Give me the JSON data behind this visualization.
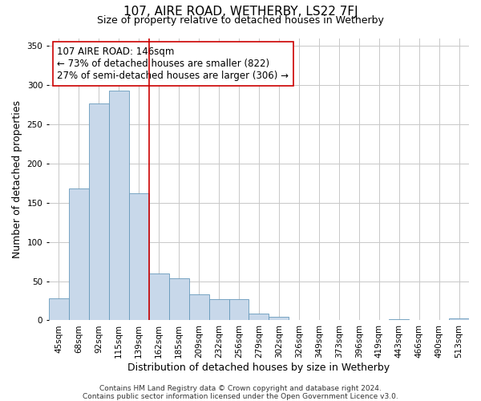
{
  "title": "107, AIRE ROAD, WETHERBY, LS22 7FJ",
  "subtitle": "Size of property relative to detached houses in Wetherby",
  "xlabel": "Distribution of detached houses by size in Wetherby",
  "ylabel": "Number of detached properties",
  "footer_line1": "Contains HM Land Registry data © Crown copyright and database right 2024.",
  "footer_line2": "Contains public sector information licensed under the Open Government Licence v3.0.",
  "bar_labels": [
    "45sqm",
    "68sqm",
    "92sqm",
    "115sqm",
    "139sqm",
    "162sqm",
    "185sqm",
    "209sqm",
    "232sqm",
    "256sqm",
    "279sqm",
    "302sqm",
    "326sqm",
    "349sqm",
    "373sqm",
    "396sqm",
    "419sqm",
    "443sqm",
    "466sqm",
    "490sqm",
    "513sqm"
  ],
  "bar_values": [
    28,
    168,
    277,
    293,
    162,
    60,
    54,
    33,
    27,
    27,
    9,
    5,
    0,
    0,
    0,
    0,
    0,
    2,
    0,
    0,
    3
  ],
  "bar_color": "#c8d8ea",
  "bar_edge_color": "#6699bb",
  "vline_x_index": 4,
  "vline_color": "#cc0000",
  "annotation_line1": "107 AIRE ROAD: 146sqm",
  "annotation_line2": "← 73% of detached houses are smaller (822)",
  "annotation_line3": "27% of semi-detached houses are larger (306) →",
  "annotation_box_color": "#ffffff",
  "annotation_box_edge_color": "#cc0000",
  "ylim": [
    0,
    360
  ],
  "yticks": [
    0,
    50,
    100,
    150,
    200,
    250,
    300,
    350
  ],
  "background_color": "#ffffff",
  "grid_color": "#c8c8c8",
  "title_fontsize": 11,
  "subtitle_fontsize": 9,
  "annotation_fontsize": 8.5,
  "axis_label_fontsize": 9,
  "tick_fontsize": 7.5,
  "footer_fontsize": 6.5
}
